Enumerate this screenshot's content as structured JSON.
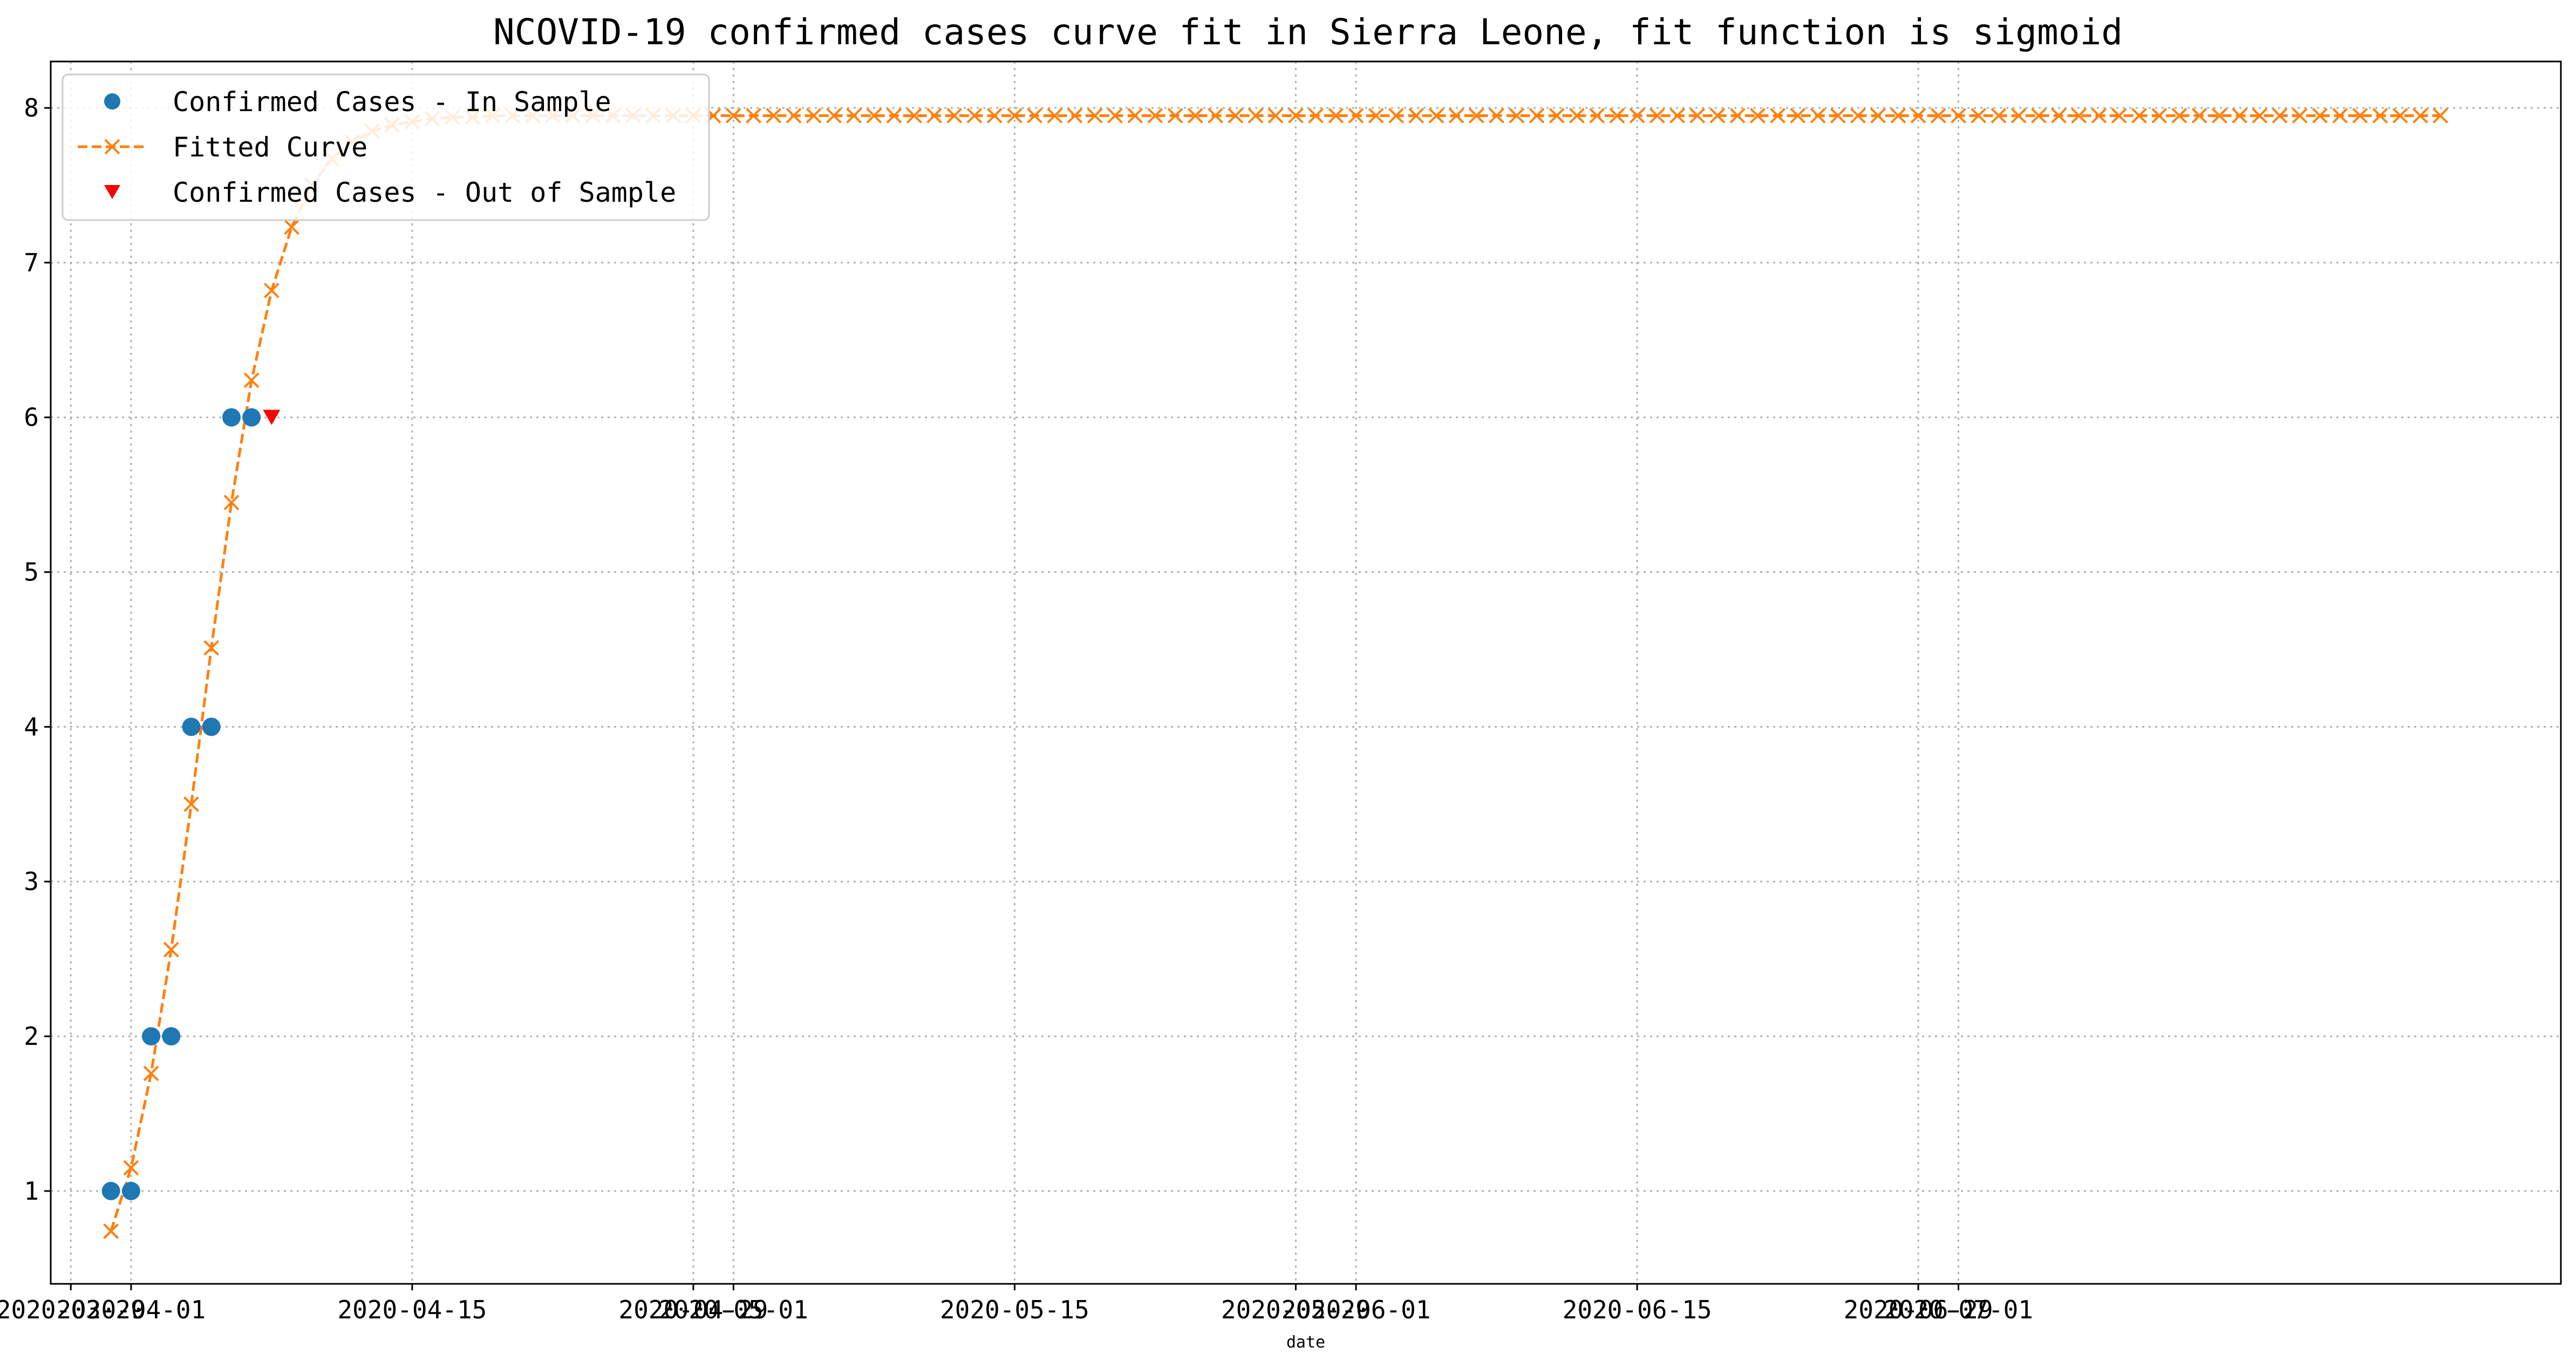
{
  "chart_data": {
    "type": "line",
    "title": "NCOVID-19 confirmed cases curve fit in Sierra Leone, fit function is sigmoid",
    "xlabel": "date",
    "ylabel": "",
    "xlim": [
      "2020-03-28",
      "2020-07-31"
    ],
    "ylim": [
      0.4,
      8.3
    ],
    "grid": true,
    "legend_position": "top-left",
    "x_ticks": [
      {
        "date": "2020-03-29",
        "label": "2020-03-29"
      },
      {
        "date": "2020-04-01",
        "label": "2020-04-01"
      },
      {
        "date": "2020-04-15",
        "label": "2020-04-15"
      },
      {
        "date": "2020-04-29",
        "label": "2020-04-29"
      },
      {
        "date": "2020-05-01",
        "label": "2020-05-01"
      },
      {
        "date": "2020-05-15",
        "label": "2020-05-15"
      },
      {
        "date": "2020-05-29",
        "label": "2020-05-29"
      },
      {
        "date": "2020-06-01",
        "label": "2020-06-01"
      },
      {
        "date": "2020-06-15",
        "label": "2020-06-15"
      },
      {
        "date": "2020-06-29",
        "label": "2020-06-29"
      },
      {
        "date": "2020-07-01",
        "label": "2020-07-01"
      }
    ],
    "y_ticks": [
      1,
      2,
      3,
      4,
      5,
      6,
      7,
      8
    ],
    "series": [
      {
        "name": "Confirmed Cases - In Sample",
        "kind": "scatter",
        "marker": "circle",
        "color": "#1f77b4",
        "x": [
          "2020-03-31",
          "2020-04-01",
          "2020-04-02",
          "2020-04-03",
          "2020-04-04",
          "2020-04-05",
          "2020-04-06",
          "2020-04-07"
        ],
        "y": [
          1,
          1,
          2,
          2,
          4,
          4,
          6,
          6
        ]
      },
      {
        "name": "Fitted Curve",
        "kind": "line",
        "marker": "x",
        "linestyle": "dashed",
        "color": "#ff7f0e",
        "x": [
          "2020-03-31",
          "2020-04-01",
          "2020-04-02",
          "2020-04-03",
          "2020-04-04",
          "2020-04-05",
          "2020-04-06",
          "2020-04-07",
          "2020-04-08",
          "2020-04-09",
          "2020-04-10",
          "2020-04-11",
          "2020-04-12",
          "2020-04-13",
          "2020-04-14",
          "2020-04-15",
          "2020-04-16",
          "2020-04-17",
          "2020-04-18",
          "2020-04-19",
          "2020-04-20",
          "2020-04-21",
          "2020-04-22",
          "2020-04-23",
          "2020-04-24",
          "2020-04-25",
          "2020-04-26",
          "2020-04-27",
          "2020-04-28",
          "2020-04-29",
          "2020-04-30",
          "2020-05-01",
          "2020-05-02",
          "2020-05-03",
          "2020-05-04",
          "2020-05-05",
          "2020-05-06",
          "2020-05-07",
          "2020-05-08",
          "2020-05-09",
          "2020-05-10",
          "2020-05-11",
          "2020-05-12",
          "2020-05-13",
          "2020-05-14",
          "2020-05-15",
          "2020-05-16",
          "2020-05-17",
          "2020-05-18",
          "2020-05-19",
          "2020-05-20",
          "2020-05-21",
          "2020-05-22",
          "2020-05-23",
          "2020-05-24",
          "2020-05-25",
          "2020-05-26",
          "2020-05-27",
          "2020-05-28",
          "2020-05-29",
          "2020-05-30",
          "2020-05-31",
          "2020-06-01",
          "2020-06-02",
          "2020-06-03",
          "2020-06-04",
          "2020-06-05",
          "2020-06-06",
          "2020-06-07",
          "2020-06-08",
          "2020-06-09",
          "2020-06-10",
          "2020-06-11",
          "2020-06-12",
          "2020-06-13",
          "2020-06-14",
          "2020-06-15",
          "2020-06-16",
          "2020-06-17",
          "2020-06-18",
          "2020-06-19",
          "2020-06-20",
          "2020-06-21",
          "2020-06-22",
          "2020-06-23",
          "2020-06-24",
          "2020-06-25",
          "2020-06-26",
          "2020-06-27",
          "2020-06-28",
          "2020-06-29",
          "2020-06-30",
          "2020-07-01",
          "2020-07-02",
          "2020-07-03",
          "2020-07-04",
          "2020-07-05",
          "2020-07-06",
          "2020-07-07",
          "2020-07-08",
          "2020-07-09",
          "2020-07-10",
          "2020-07-11",
          "2020-07-12",
          "2020-07-13",
          "2020-07-14",
          "2020-07-15",
          "2020-07-16",
          "2020-07-17",
          "2020-07-18",
          "2020-07-19",
          "2020-07-20",
          "2020-07-21",
          "2020-07-22",
          "2020-07-23",
          "2020-07-24",
          "2020-07-25"
        ],
        "y": [
          0.74,
          1.15,
          1.76,
          2.56,
          3.5,
          4.51,
          5.45,
          6.24,
          6.82,
          7.23,
          7.5,
          7.67,
          7.78,
          7.85,
          7.89,
          7.91,
          7.93,
          7.94,
          7.94,
          7.95,
          7.95,
          7.95,
          7.95,
          7.95,
          7.95,
          7.95,
          7.95,
          7.95,
          7.95,
          7.95,
          7.95,
          7.95,
          7.95,
          7.95,
          7.95,
          7.95,
          7.95,
          7.95,
          7.95,
          7.95,
          7.95,
          7.95,
          7.95,
          7.95,
          7.95,
          7.95,
          7.95,
          7.95,
          7.95,
          7.95,
          7.95,
          7.95,
          7.95,
          7.95,
          7.95,
          7.95,
          7.95,
          7.95,
          7.95,
          7.95,
          7.95,
          7.95,
          7.95,
          7.95,
          7.95,
          7.95,
          7.95,
          7.95,
          7.95,
          7.95,
          7.95,
          7.95,
          7.95,
          7.95,
          7.95,
          7.95,
          7.95,
          7.95,
          7.95,
          7.95,
          7.95,
          7.95,
          7.95,
          7.95,
          7.95,
          7.95,
          7.95,
          7.95,
          7.95,
          7.95,
          7.95,
          7.95,
          7.95,
          7.95,
          7.95,
          7.95,
          7.95,
          7.95,
          7.95,
          7.95,
          7.95,
          7.95,
          7.95,
          7.95,
          7.95,
          7.95,
          7.95,
          7.95,
          7.95,
          7.95,
          7.95,
          7.95,
          7.95,
          7.95,
          7.95,
          7.95,
          7.95
        ]
      },
      {
        "name": "Confirmed Cases - Out of Sample",
        "kind": "scatter",
        "marker": "triangle-down",
        "color": "#ff0000",
        "x": [
          "2020-04-08"
        ],
        "y": [
          6
        ]
      }
    ]
  },
  "legend": {
    "items": [
      {
        "label": "Confirmed Cases - In Sample",
        "marker": "circle",
        "color": "#1f77b4"
      },
      {
        "label": "Fitted Curve",
        "marker": "x-dashed",
        "color": "#ff7f0e"
      },
      {
        "label": "Confirmed Cases - Out of Sample",
        "marker": "triangle-down",
        "color": "#ff0000"
      }
    ]
  }
}
